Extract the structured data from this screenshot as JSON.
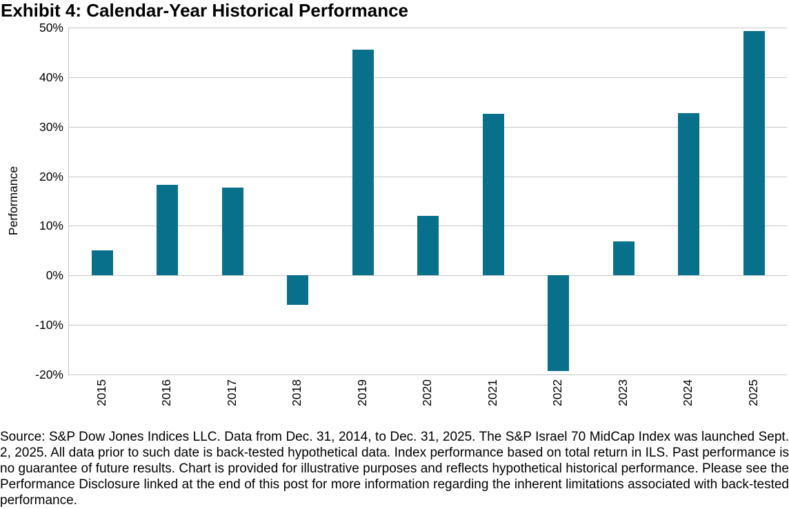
{
  "title": "Exhibit 4: Calendar-Year Historical Performance",
  "chart_data": {
    "type": "bar",
    "title": "Exhibit 4: Calendar-Year Historical Performance",
    "categories": [
      "2015",
      "2016",
      "2017",
      "2018",
      "2019",
      "2020",
      "2021",
      "2022",
      "2023",
      "2024",
      "2025"
    ],
    "values": [
      5.0,
      18.3,
      17.7,
      -6.0,
      45.6,
      12.0,
      32.6,
      -19.3,
      6.9,
      32.7,
      49.3
    ],
    "xlabel": "",
    "ylabel": "Performance",
    "ylim": [
      -20,
      50
    ],
    "yticks": [
      50,
      40,
      30,
      20,
      10,
      0,
      -10,
      -20
    ],
    "ytick_labels": [
      "50%",
      "40%",
      "30%",
      "20%",
      "10%",
      "0%",
      "-10%",
      "-20%"
    ],
    "grid": true,
    "legend": "none",
    "bar_color": "#08708a",
    "gridline_color": "#c6c6c6"
  },
  "footer": {
    "text": "Source: S&P Dow Jones Indices LLC. Data from Dec. 31, 2014, to Dec. 31, 2025. The S&P Israel 70 MidCap Index was launched Sept. 2, 2025. All data prior to such date is back-tested hypothetical data. Index performance based on total return in ILS. Past performance is no guarantee of future results. Chart is provided for illustrative purposes and reflects hypothetical historical performance.  Please see the Performance Disclosure linked at the end of this post for more information regarding the inherent limitations associated with back-tested performance."
  }
}
